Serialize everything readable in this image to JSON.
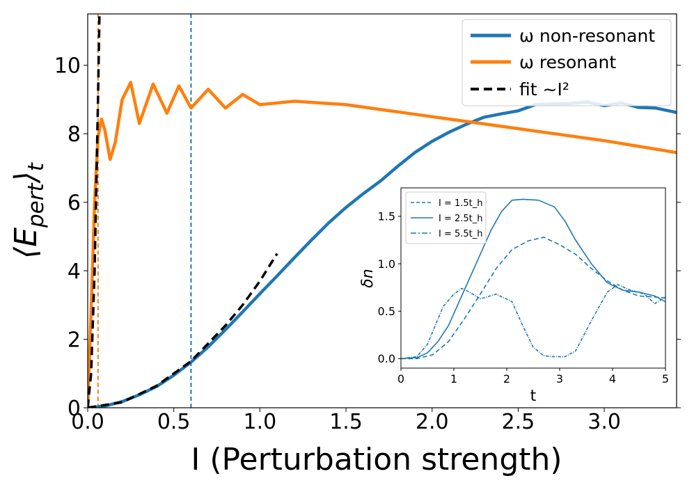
{
  "chart_data": [
    {
      "type": "line",
      "xlabel": "I (Perturbation strength)",
      "ylabel": "⟨E_pert⟩_t",
      "xlim": [
        0,
        3.42
      ],
      "ylim": [
        0,
        11.5
      ],
      "xticks": [
        "0.0",
        "0.5",
        "1.0",
        "1.5",
        "2.0",
        "2.5",
        "3.0"
      ],
      "yticks": [
        "0",
        "2",
        "4",
        "6",
        "8",
        "10"
      ],
      "legend_position": "top-right",
      "series": [
        {
          "name": "ω non-resonant",
          "color": "#1f77b4",
          "style": "solid",
          "x": [
            0,
            0.1,
            0.2,
            0.3,
            0.4,
            0.5,
            0.6,
            0.7,
            0.8,
            0.9,
            1.0,
            1.1,
            1.2,
            1.3,
            1.4,
            1.5,
            1.6,
            1.7,
            1.8,
            1.9,
            2.0,
            2.1,
            2.2,
            2.3,
            2.4,
            2.5,
            2.6,
            2.7,
            2.8,
            2.9,
            3.0,
            3.1,
            3.2,
            3.3,
            3.42
          ],
          "y": [
            0,
            0.05,
            0.18,
            0.38,
            0.62,
            0.95,
            1.33,
            1.78,
            2.28,
            2.8,
            3.33,
            3.85,
            4.38,
            4.9,
            5.4,
            5.85,
            6.25,
            6.62,
            7.05,
            7.45,
            7.78,
            8.05,
            8.28,
            8.48,
            8.58,
            8.67,
            8.85,
            8.87,
            8.88,
            8.93,
            8.82,
            8.9,
            8.77,
            8.75,
            8.62
          ]
        },
        {
          "name": "ω resonant",
          "color": "#ff7f0e",
          "style": "solid",
          "x": [
            0,
            0.02,
            0.04,
            0.06,
            0.08,
            0.1,
            0.13,
            0.16,
            0.2,
            0.25,
            0.3,
            0.38,
            0.46,
            0.53,
            0.6,
            0.7,
            0.8,
            0.9,
            1.0,
            1.2,
            1.5,
            2.0,
            2.5,
            3.0,
            3.42
          ],
          "y": [
            0,
            2.8,
            6.0,
            7.9,
            8.43,
            8.1,
            7.25,
            7.75,
            9.0,
            9.5,
            8.3,
            9.45,
            8.6,
            9.4,
            8.75,
            9.3,
            8.75,
            9.15,
            8.85,
            8.95,
            8.85,
            8.5,
            8.15,
            7.8,
            7.45
          ]
        },
        {
          "name": "fit ~I^2",
          "color": "#000000",
          "style": "dashed",
          "x": [
            0,
            0.02,
            0.04,
            0.06,
            0.07
          ],
          "y": [
            0,
            1.0,
            4.0,
            9.0,
            12.0
          ]
        },
        {
          "name": "",
          "color": "#000000",
          "style": "dashed",
          "x": [
            0,
            0.2,
            0.4,
            0.6,
            0.8,
            0.9,
            1.0,
            1.1
          ],
          "y": [
            0,
            0.16,
            0.64,
            1.36,
            2.4,
            3.0,
            3.7,
            4.5
          ]
        }
      ],
      "vlines": [
        {
          "x": 0.06,
          "color": "#ff7f0e"
        },
        {
          "x": 0.6,
          "color": "#1f77b4"
        }
      ],
      "legend": [
        {
          "label": "ω non-resonant",
          "color": "#1f77b4",
          "style": "solid"
        },
        {
          "label": "ω resonant",
          "color": "#ff7f0e",
          "style": "solid"
        },
        {
          "label": "fit ~I²",
          "color": "#000000",
          "style": "dashed"
        }
      ]
    },
    {
      "type": "line",
      "xlabel": "t",
      "ylabel": "δn",
      "xlim": [
        0,
        5
      ],
      "ylim": [
        -0.1,
        1.8
      ],
      "xticks": [
        "0",
        "1",
        "2",
        "3",
        "4",
        "5"
      ],
      "yticks": [
        "0.0",
        "0.5",
        "1.0",
        "1.5"
      ],
      "legend_position": "top-left",
      "series": [
        {
          "name": "I = 1.5t_h",
          "color": "#1f77b4",
          "style": "dashed",
          "x": [
            0,
            0.3,
            0.6,
            0.9,
            1.2,
            1.5,
            1.8,
            2.1,
            2.4,
            2.7,
            3.0,
            3.3,
            3.6,
            3.9,
            4.2,
            4.5,
            4.8,
            5.0
          ],
          "y": [
            0,
            0.0,
            0.04,
            0.18,
            0.42,
            0.68,
            0.95,
            1.15,
            1.24,
            1.28,
            1.2,
            1.1,
            0.95,
            0.82,
            0.72,
            0.66,
            0.65,
            0.64
          ]
        },
        {
          "name": "I = 2.5t_h",
          "color": "#1f77b4",
          "style": "solid",
          "x": [
            0,
            0.3,
            0.5,
            0.7,
            0.9,
            1.1,
            1.3,
            1.5,
            1.7,
            1.9,
            2.1,
            2.3,
            2.6,
            2.9,
            3.1,
            3.3,
            3.6,
            3.9,
            4.2,
            4.5,
            4.8,
            5.0
          ],
          "y": [
            0,
            0.01,
            0.06,
            0.18,
            0.35,
            0.6,
            0.85,
            1.1,
            1.35,
            1.55,
            1.67,
            1.68,
            1.67,
            1.6,
            1.45,
            1.25,
            1.0,
            0.8,
            0.72,
            0.7,
            0.66,
            0.6
          ]
        },
        {
          "name": "I = 5.5t_h",
          "color": "#1f77b4",
          "style": "dashdot",
          "x": [
            0,
            0.3,
            0.5,
            0.8,
            1.0,
            1.15,
            1.3,
            1.5,
            1.8,
            2.1,
            2.3,
            2.5,
            2.7,
            2.9,
            3.1,
            3.3,
            3.6,
            3.9,
            4.1,
            4.3,
            4.6,
            4.8,
            5.0
          ],
          "y": [
            0,
            0.02,
            0.15,
            0.55,
            0.68,
            0.74,
            0.7,
            0.63,
            0.68,
            0.6,
            0.35,
            0.12,
            0.03,
            0.02,
            0.02,
            0.08,
            0.4,
            0.7,
            0.78,
            0.73,
            0.68,
            0.58,
            0.65
          ]
        }
      ],
      "legend": [
        {
          "label": "I = 1.5t_h",
          "color": "#1f77b4",
          "style": "dashed"
        },
        {
          "label": "I = 2.5t_h",
          "color": "#1f77b4",
          "style": "solid"
        },
        {
          "label": "I = 5.5t_h",
          "color": "#1f77b4",
          "style": "dashdot"
        }
      ]
    }
  ]
}
